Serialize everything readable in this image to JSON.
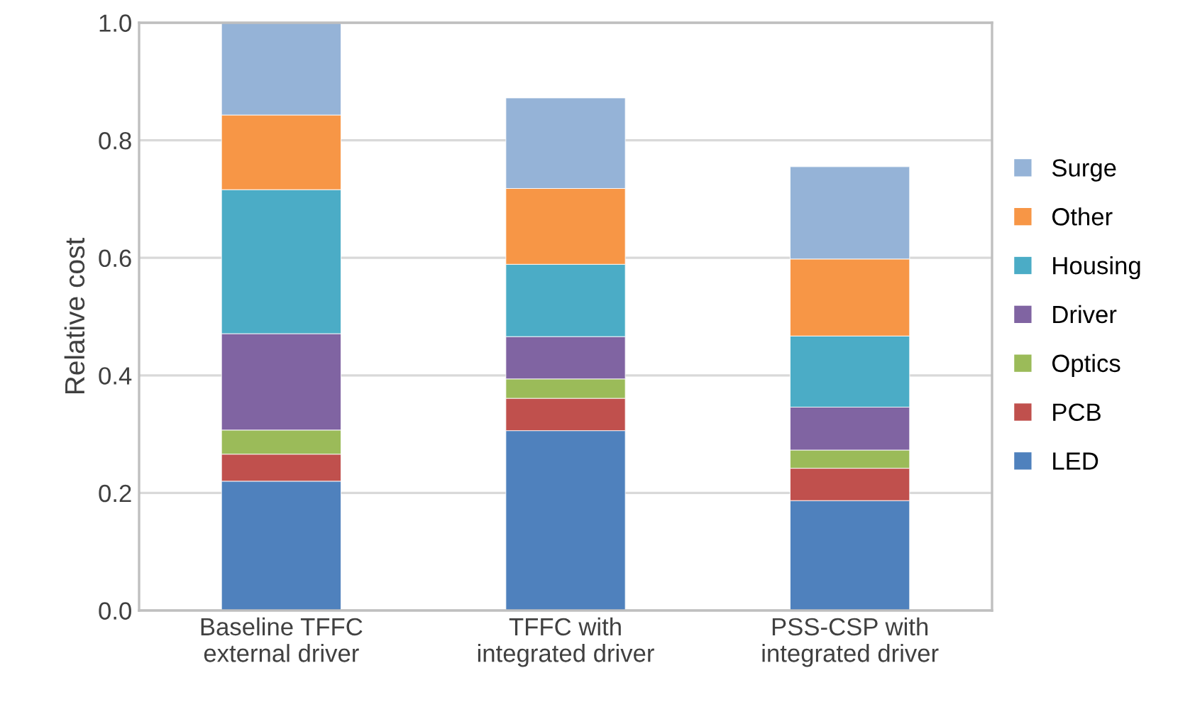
{
  "chart_data": {
    "type": "bar",
    "stacked": true,
    "ylabel": "Relative cost",
    "categories": [
      "Baseline TFFC\nexternal driver",
      "TFFC with\nintegrated driver",
      "PSS-CSP with\nintegrated driver"
    ],
    "series": [
      {
        "name": "LED",
        "color": "#4f81bd",
        "values": [
          0.22,
          0.306,
          0.187
        ]
      },
      {
        "name": "PCB",
        "color": "#c0504d",
        "values": [
          0.046,
          0.055,
          0.055
        ]
      },
      {
        "name": "Optics",
        "color": "#9bbb59",
        "values": [
          0.041,
          0.033,
          0.031
        ]
      },
      {
        "name": "Driver",
        "color": "#8064a2",
        "values": [
          0.164,
          0.072,
          0.073
        ]
      },
      {
        "name": "Housing",
        "color": "#4bacc6",
        "values": [
          0.245,
          0.123,
          0.121
        ]
      },
      {
        "name": "Other",
        "color": "#f79646",
        "values": [
          0.127,
          0.129,
          0.131
        ]
      },
      {
        "name": "Surge",
        "color": "#95b3d7",
        "values": [
          0.157,
          0.154,
          0.157
        ]
      }
    ],
    "ylim": [
      0,
      1.0
    ],
    "yticks": [
      {
        "value": 0,
        "label": "0.0"
      },
      {
        "value": 0.2,
        "label": "0.2"
      },
      {
        "value": 0.4,
        "label": "0.4"
      },
      {
        "value": 0.6,
        "label": "0.6"
      },
      {
        "value": 0.8,
        "label": "0.8"
      },
      {
        "value": 1.0,
        "label": "1.0"
      }
    ],
    "grid": "y",
    "legend": "right"
  }
}
